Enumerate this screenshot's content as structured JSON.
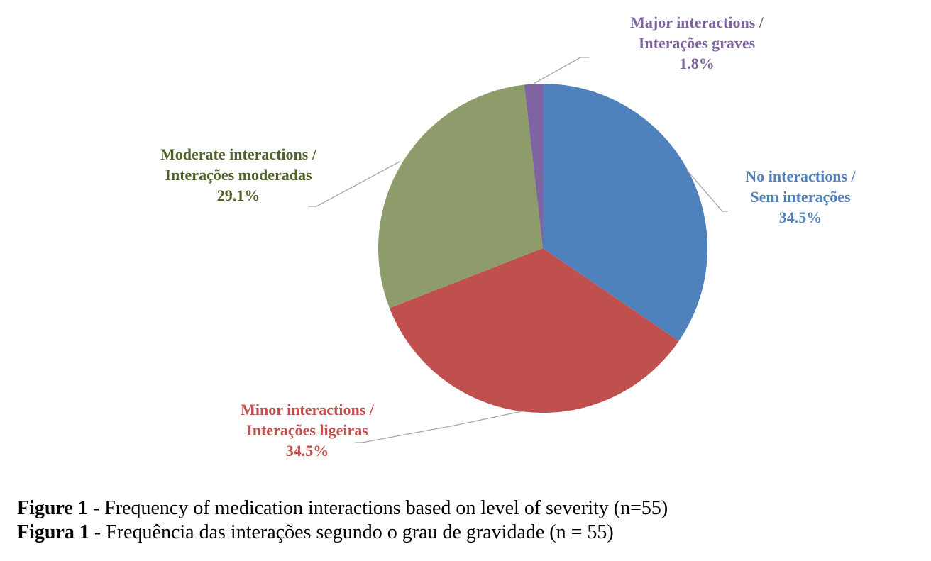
{
  "chart_data": {
    "type": "pie",
    "slices": [
      {
        "name_en": "No interactions /",
        "name_pt": "Sem interações",
        "value": 34.5,
        "value_label": "34.5%",
        "color": "#4F81BD",
        "label_color": "#4F81BD"
      },
      {
        "name_en": "Minor interactions /",
        "name_pt": "Interações ligeiras",
        "value": 34.5,
        "value_label": "34.5%",
        "color": "#C0504D",
        "label_color": "#C0504D"
      },
      {
        "name_en": "Moderate interactions /",
        "name_pt": "Interações moderadas",
        "value": 29.1,
        "value_label": "29.1%",
        "color": "#8E9C6B",
        "label_color": "#4F6228"
      },
      {
        "name_en": "Major interactions /",
        "name_pt": "Interações graves",
        "value": 1.8,
        "value_label": "1.8%",
        "color": "#8064A2",
        "label_color": "#8064A2"
      }
    ],
    "start_angle_deg": 0,
    "direction": "clockwise",
    "leader_line_color": "#A6A6A6"
  },
  "caption": {
    "line_en": {
      "figure_label": "Figure 1 -",
      "text": " Frequency of medication interactions based on level of severity (n=55)"
    },
    "line_pt": {
      "figure_label": "Figura 1 -",
      "text": " Frequência das interações segundo o grau de gravidade (n = 55)"
    }
  }
}
